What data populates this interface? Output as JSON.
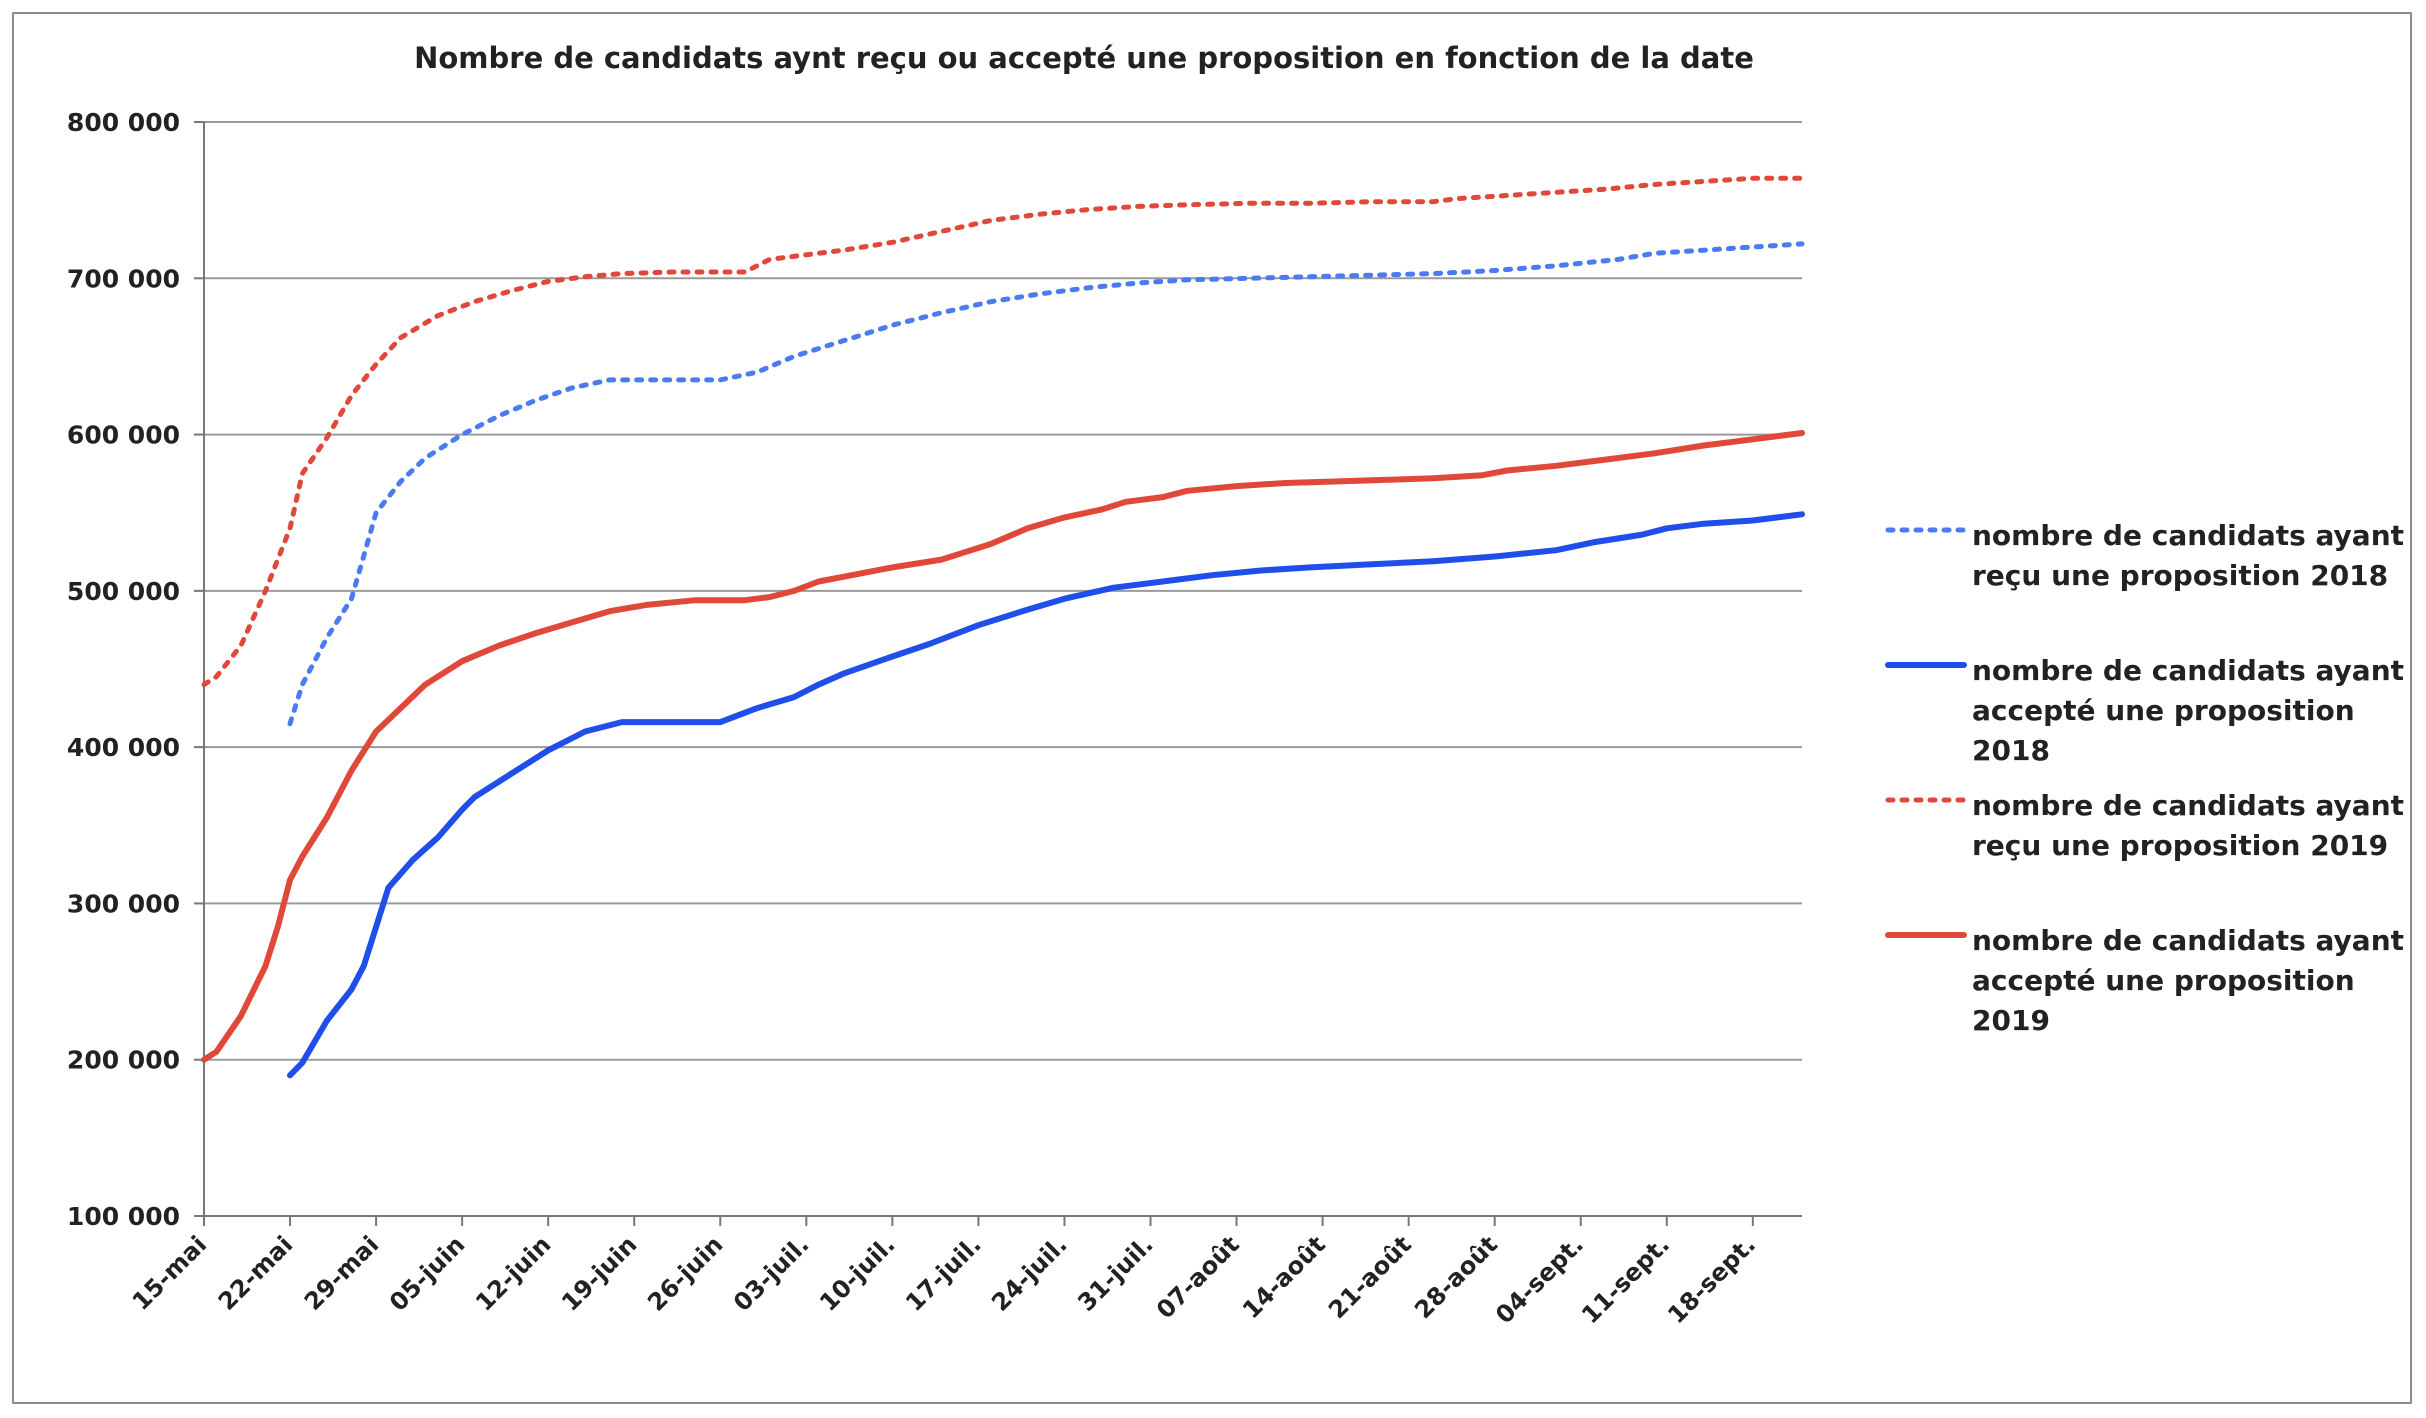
{
  "chart_data": {
    "type": "line",
    "title": "Nombre de candidats aynt reçu ou accepté une proposition en fonction de la date",
    "xlabel": "",
    "ylabel": "",
    "x_ticks": [
      "15-mai",
      "22-mai",
      "29-mai",
      "05-juin",
      "12-juin",
      "19-juin",
      "26-juin",
      "03-juil.",
      "10-juil.",
      "17-juil.",
      "24-juil.",
      "31-juil.",
      "07-août",
      "14-août",
      "21-août",
      "28-août",
      "04-sept.",
      "11-sept.",
      "18-sept."
    ],
    "x_unit": "days since 15-mai",
    "xlim": [
      0,
      130
    ],
    "ylim": [
      100000,
      800000
    ],
    "y_ticks": [
      100000,
      200000,
      300000,
      400000,
      500000,
      600000,
      700000,
      800000
    ],
    "y_tick_labels": [
      "100 000",
      "200 000",
      "300 000",
      "400 000",
      "500 000",
      "600 000",
      "700 000",
      "800 000"
    ],
    "grid": true,
    "legend_position": "right",
    "series": [
      {
        "name": "nombre de candidats ayant reçu une proposition 2018",
        "color": "#4a7bf0",
        "style": "dotted",
        "points": [
          [
            7,
            415000
          ],
          [
            8,
            440000
          ],
          [
            10,
            470000
          ],
          [
            12,
            495000
          ],
          [
            14,
            550000
          ],
          [
            16,
            570000
          ],
          [
            18,
            585000
          ],
          [
            21,
            600000
          ],
          [
            24,
            612000
          ],
          [
            27,
            622000
          ],
          [
            30,
            630000
          ],
          [
            33,
            635000
          ],
          [
            36,
            635000
          ],
          [
            39,
            635000
          ],
          [
            42,
            635000
          ],
          [
            45,
            640000
          ],
          [
            48,
            650000
          ],
          [
            52,
            660000
          ],
          [
            56,
            670000
          ],
          [
            60,
            678000
          ],
          [
            64,
            685000
          ],
          [
            68,
            690000
          ],
          [
            72,
            694000
          ],
          [
            76,
            697000
          ],
          [
            80,
            699000
          ],
          [
            85,
            700000
          ],
          [
            90,
            701000
          ],
          [
            95,
            702000
          ],
          [
            100,
            703000
          ],
          [
            105,
            705000
          ],
          [
            110,
            708000
          ],
          [
            115,
            712000
          ],
          [
            118,
            716000
          ],
          [
            122,
            718000
          ],
          [
            126,
            720000
          ],
          [
            130,
            722000
          ]
        ]
      },
      {
        "name": "nombre de candidats ayant accepté une proposition 2018",
        "color": "#1f4ee8",
        "style": "solid",
        "points": [
          [
            7,
            190000
          ],
          [
            8,
            198000
          ],
          [
            10,
            225000
          ],
          [
            12,
            245000
          ],
          [
            13,
            260000
          ],
          [
            15,
            310000
          ],
          [
            17,
            328000
          ],
          [
            19,
            342000
          ],
          [
            21,
            360000
          ],
          [
            22,
            368000
          ],
          [
            25,
            383000
          ],
          [
            28,
            398000
          ],
          [
            31,
            410000
          ],
          [
            34,
            416000
          ],
          [
            37,
            416000
          ],
          [
            40,
            416000
          ],
          [
            42,
            416000
          ],
          [
            45,
            425000
          ],
          [
            48,
            432000
          ],
          [
            50,
            440000
          ],
          [
            52,
            447000
          ],
          [
            56,
            458000
          ],
          [
            59,
            466000
          ],
          [
            63,
            478000
          ],
          [
            67,
            488000
          ],
          [
            70,
            495000
          ],
          [
            74,
            502000
          ],
          [
            78,
            506000
          ],
          [
            82,
            510000
          ],
          [
            86,
            513000
          ],
          [
            90,
            515000
          ],
          [
            95,
            517000
          ],
          [
            100,
            519000
          ],
          [
            105,
            522000
          ],
          [
            110,
            526000
          ],
          [
            113,
            531000
          ],
          [
            117,
            536000
          ],
          [
            119,
            540000
          ],
          [
            122,
            543000
          ],
          [
            126,
            545000
          ],
          [
            130,
            549000
          ]
        ]
      },
      {
        "name": "nombre de candidats ayant reçu une proposition 2019",
        "color": "#e0483a",
        "style": "dotted",
        "points": [
          [
            0,
            440000
          ],
          [
            1,
            445000
          ],
          [
            3,
            465000
          ],
          [
            5,
            500000
          ],
          [
            7,
            540000
          ],
          [
            8,
            575000
          ],
          [
            10,
            598000
          ],
          [
            12,
            625000
          ],
          [
            14,
            645000
          ],
          [
            16,
            662000
          ],
          [
            19,
            676000
          ],
          [
            22,
            685000
          ],
          [
            25,
            692000
          ],
          [
            28,
            698000
          ],
          [
            31,
            701000
          ],
          [
            34,
            703000
          ],
          [
            38,
            704000
          ],
          [
            42,
            704000
          ],
          [
            44,
            704000
          ],
          [
            46,
            712000
          ],
          [
            49,
            715000
          ],
          [
            52,
            718000
          ],
          [
            56,
            723000
          ],
          [
            60,
            730000
          ],
          [
            64,
            737000
          ],
          [
            68,
            741000
          ],
          [
            72,
            744000
          ],
          [
            76,
            746000
          ],
          [
            80,
            747000
          ],
          [
            85,
            748000
          ],
          [
            90,
            748000
          ],
          [
            95,
            749000
          ],
          [
            100,
            749000
          ],
          [
            102,
            751000
          ],
          [
            106,
            753000
          ],
          [
            110,
            755000
          ],
          [
            114,
            757000
          ],
          [
            118,
            760000
          ],
          [
            122,
            762000
          ],
          [
            126,
            764000
          ],
          [
            130,
            764000
          ]
        ]
      },
      {
        "name": "nombre de candidats ayant accepté une proposition 2019",
        "color": "#e0483a",
        "style": "solid",
        "points": [
          [
            0,
            200000
          ],
          [
            1,
            205000
          ],
          [
            3,
            228000
          ],
          [
            5,
            260000
          ],
          [
            6,
            285000
          ],
          [
            7,
            315000
          ],
          [
            8,
            330000
          ],
          [
            10,
            355000
          ],
          [
            12,
            385000
          ],
          [
            14,
            410000
          ],
          [
            16,
            425000
          ],
          [
            18,
            440000
          ],
          [
            21,
            455000
          ],
          [
            24,
            465000
          ],
          [
            27,
            473000
          ],
          [
            30,
            480000
          ],
          [
            33,
            487000
          ],
          [
            36,
            491000
          ],
          [
            40,
            494000
          ],
          [
            44,
            494000
          ],
          [
            46,
            496000
          ],
          [
            48,
            500000
          ],
          [
            50,
            506000
          ],
          [
            52,
            509000
          ],
          [
            56,
            515000
          ],
          [
            60,
            520000
          ],
          [
            62,
            525000
          ],
          [
            64,
            530000
          ],
          [
            67,
            540000
          ],
          [
            70,
            547000
          ],
          [
            73,
            552000
          ],
          [
            75,
            557000
          ],
          [
            78,
            560000
          ],
          [
            80,
            564000
          ],
          [
            84,
            567000
          ],
          [
            88,
            569000
          ],
          [
            92,
            570000
          ],
          [
            96,
            571000
          ],
          [
            100,
            572000
          ],
          [
            104,
            574000
          ],
          [
            106,
            577000
          ],
          [
            110,
            580000
          ],
          [
            114,
            584000
          ],
          [
            118,
            588000
          ],
          [
            122,
            593000
          ],
          [
            126,
            597000
          ],
          [
            130,
            601000
          ]
        ]
      }
    ]
  }
}
